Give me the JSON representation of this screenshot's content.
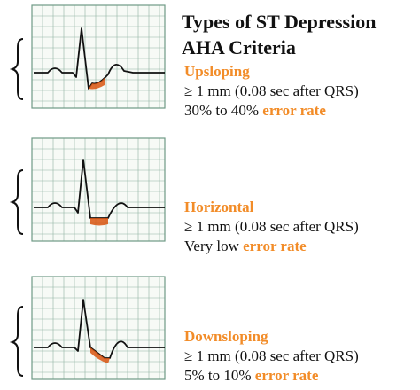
{
  "title": {
    "line1": "Types of ST Depression",
    "line2": "AHA Criteria"
  },
  "colors": {
    "accent": "#f28c28",
    "st_segment": "#d9540f",
    "grid": "#6f9a86",
    "trace": "#111111"
  },
  "panels": [
    {
      "type": "Upsloping",
      "criterion": "≥ 1 mm (0.08 sec after QRS)",
      "rate_prefix": "30% to 40%",
      "rate_suffix": "error rate"
    },
    {
      "type": "Horizontal",
      "criterion": "≥ 1 mm (0.08 sec after QRS)",
      "rate_prefix": "Very low",
      "rate_suffix": "error rate"
    },
    {
      "type": "Downsloping",
      "criterion": "≥ 1 mm (0.08 sec after QRS)",
      "rate_prefix": "5% to 10%",
      "rate_suffix": "error rate"
    }
  ]
}
